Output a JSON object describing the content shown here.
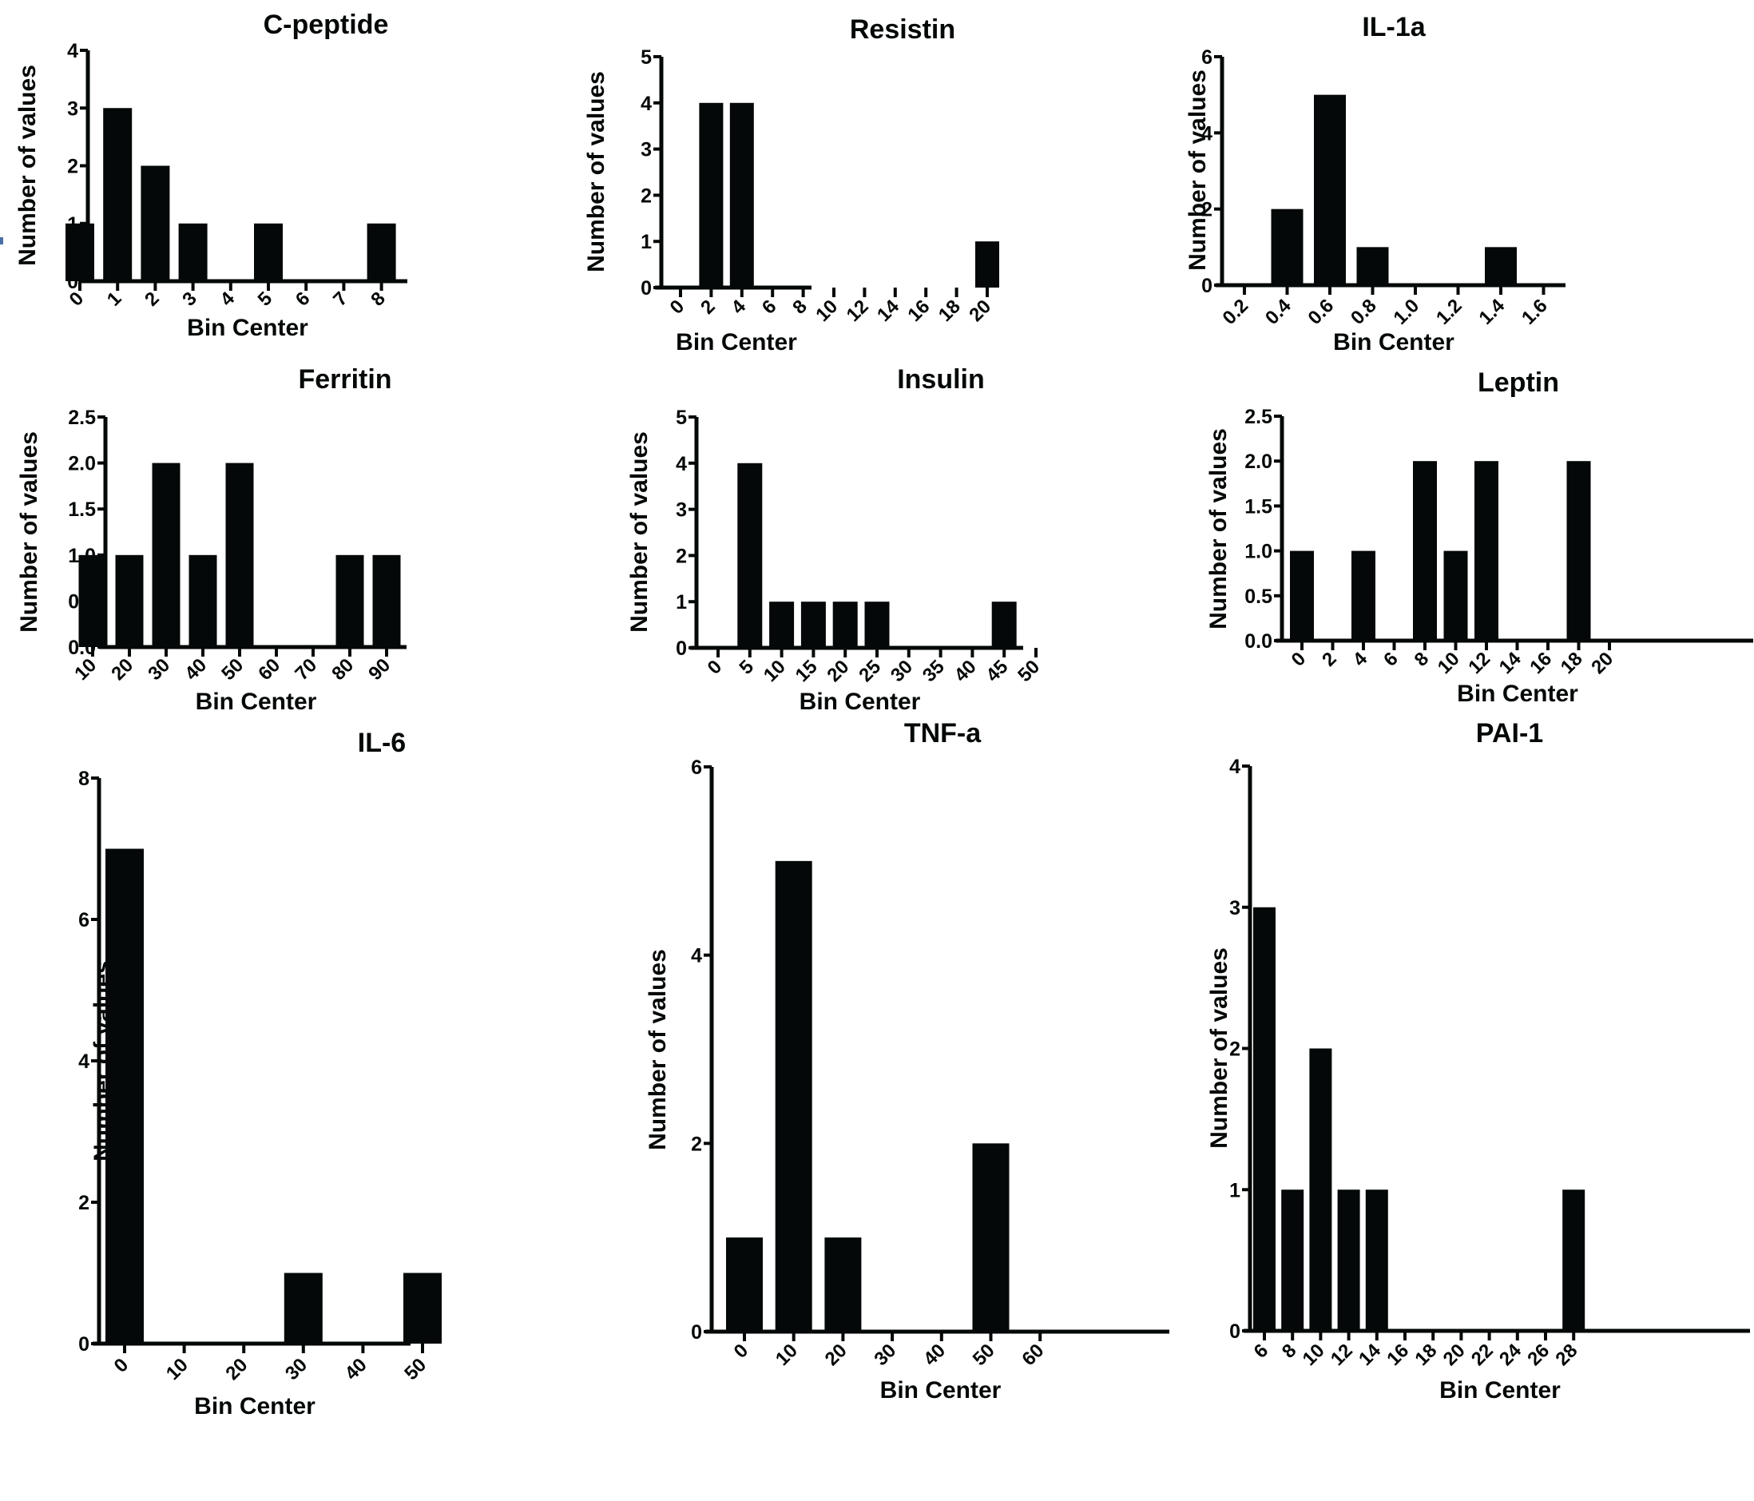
{
  "chart_data": [
    {
      "type": "bar",
      "title": "C-peptide",
      "xlabel": "Bin Center",
      "ylabel": "Number of values",
      "categories": [
        "0",
        "1",
        "2",
        "3",
        "4",
        "5",
        "6",
        "7",
        "8"
      ],
      "values": [
        1,
        3,
        2,
        1,
        0,
        1,
        0,
        0,
        1
      ],
      "ylim": [
        0,
        4
      ],
      "yticks": [
        "0",
        "1",
        "2",
        "3",
        "4"
      ],
      "grid": false
    },
    {
      "type": "bar",
      "title": "Resistin",
      "xlabel": "Bin Center",
      "ylabel": "Number of values",
      "categories": [
        "0",
        "2",
        "4",
        "6",
        "8",
        "10",
        "12",
        "14",
        "16",
        "18",
        "20"
      ],
      "values": [
        0,
        4,
        4,
        0,
        0,
        0,
        0,
        0,
        0,
        0,
        1
      ],
      "ylim": [
        0,
        5
      ],
      "yticks": [
        "0",
        "1",
        "2",
        "3",
        "4",
        "5"
      ],
      "grid": false
    },
    {
      "type": "bar",
      "title": "IL-1a",
      "xlabel": "Bin Center",
      "ylabel": "Number of values",
      "categories": [
        "0.2",
        "0.4",
        "0.6",
        "0.8",
        "1.0",
        "1.2",
        "1.4",
        "1.6"
      ],
      "values": [
        0,
        2,
        5,
        1,
        0,
        0,
        1,
        0
      ],
      "ylim": [
        0,
        6
      ],
      "yticks": [
        "0",
        "2",
        "4",
        "6"
      ],
      "grid": false
    },
    {
      "type": "bar",
      "title": "Ferritin",
      "xlabel": "Bin Center",
      "ylabel": "Number of values",
      "categories": [
        "10",
        "20",
        "30",
        "40",
        "50",
        "60",
        "70",
        "80",
        "90"
      ],
      "values": [
        1,
        1,
        2,
        1,
        2,
        0,
        0,
        1,
        1
      ],
      "ylim": [
        0,
        2.5
      ],
      "yticks": [
        "0.0",
        "0.5",
        "1.0",
        "1.5",
        "2.0",
        "2.5"
      ],
      "grid": false
    },
    {
      "type": "bar",
      "title": "Insulin",
      "xlabel": "Bin Center",
      "ylabel": "Number of values",
      "categories": [
        "0",
        "5",
        "10",
        "15",
        "20",
        "25",
        "30",
        "35",
        "40",
        "45",
        "50"
      ],
      "values": [
        0,
        4,
        1,
        1,
        1,
        1,
        0,
        0,
        0,
        1,
        0
      ],
      "ylim": [
        0,
        5
      ],
      "yticks": [
        "0",
        "1",
        "2",
        "3",
        "4",
        "5"
      ],
      "grid": false
    },
    {
      "type": "bar",
      "title": "Leptin",
      "xlabel": "Bin Center",
      "ylabel": "Number of values",
      "categories": [
        "0",
        "2",
        "4",
        "6",
        "8",
        "10",
        "12",
        "14",
        "16",
        "18",
        "20"
      ],
      "values": [
        1,
        0,
        1,
        0,
        2,
        1,
        2,
        0,
        0,
        2,
        0
      ],
      "ylim": [
        0,
        2.5
      ],
      "yticks": [
        "0.0",
        "0.5",
        "1.0",
        "1.5",
        "2.0",
        "2.5"
      ],
      "grid": false
    },
    {
      "type": "bar",
      "title": "IL-6",
      "xlabel": "Bin Center",
      "ylabel": "Number of values",
      "categories": [
        "0",
        "10",
        "20",
        "30",
        "40",
        "50"
      ],
      "values": [
        7,
        0,
        0,
        1,
        0,
        1
      ],
      "ylim": [
        0,
        8
      ],
      "yticks": [
        "0",
        "2",
        "4",
        "6",
        "8"
      ],
      "grid": false
    },
    {
      "type": "bar",
      "title": "TNF-a",
      "xlabel": "Bin Center",
      "ylabel": "Number of values",
      "categories": [
        "0",
        "10",
        "20",
        "30",
        "40",
        "50",
        "60"
      ],
      "values": [
        1,
        5,
        1,
        0,
        0,
        2,
        0
      ],
      "ylim": [
        0,
        6
      ],
      "yticks": [
        "0",
        "2",
        "4",
        "6"
      ],
      "grid": false
    },
    {
      "type": "bar",
      "title": "PAI-1",
      "xlabel": "Bin Center",
      "ylabel": "Number of values",
      "categories": [
        "6",
        "8",
        "10",
        "12",
        "14",
        "16",
        "18",
        "20",
        "22",
        "24",
        "26",
        "28"
      ],
      "values": [
        3,
        1,
        2,
        1,
        1,
        0,
        0,
        0,
        0,
        0,
        0,
        1
      ],
      "ylim": [
        0,
        4
      ],
      "yticks": [
        "0",
        "1",
        "2",
        "3",
        "4"
      ],
      "grid": false
    }
  ]
}
